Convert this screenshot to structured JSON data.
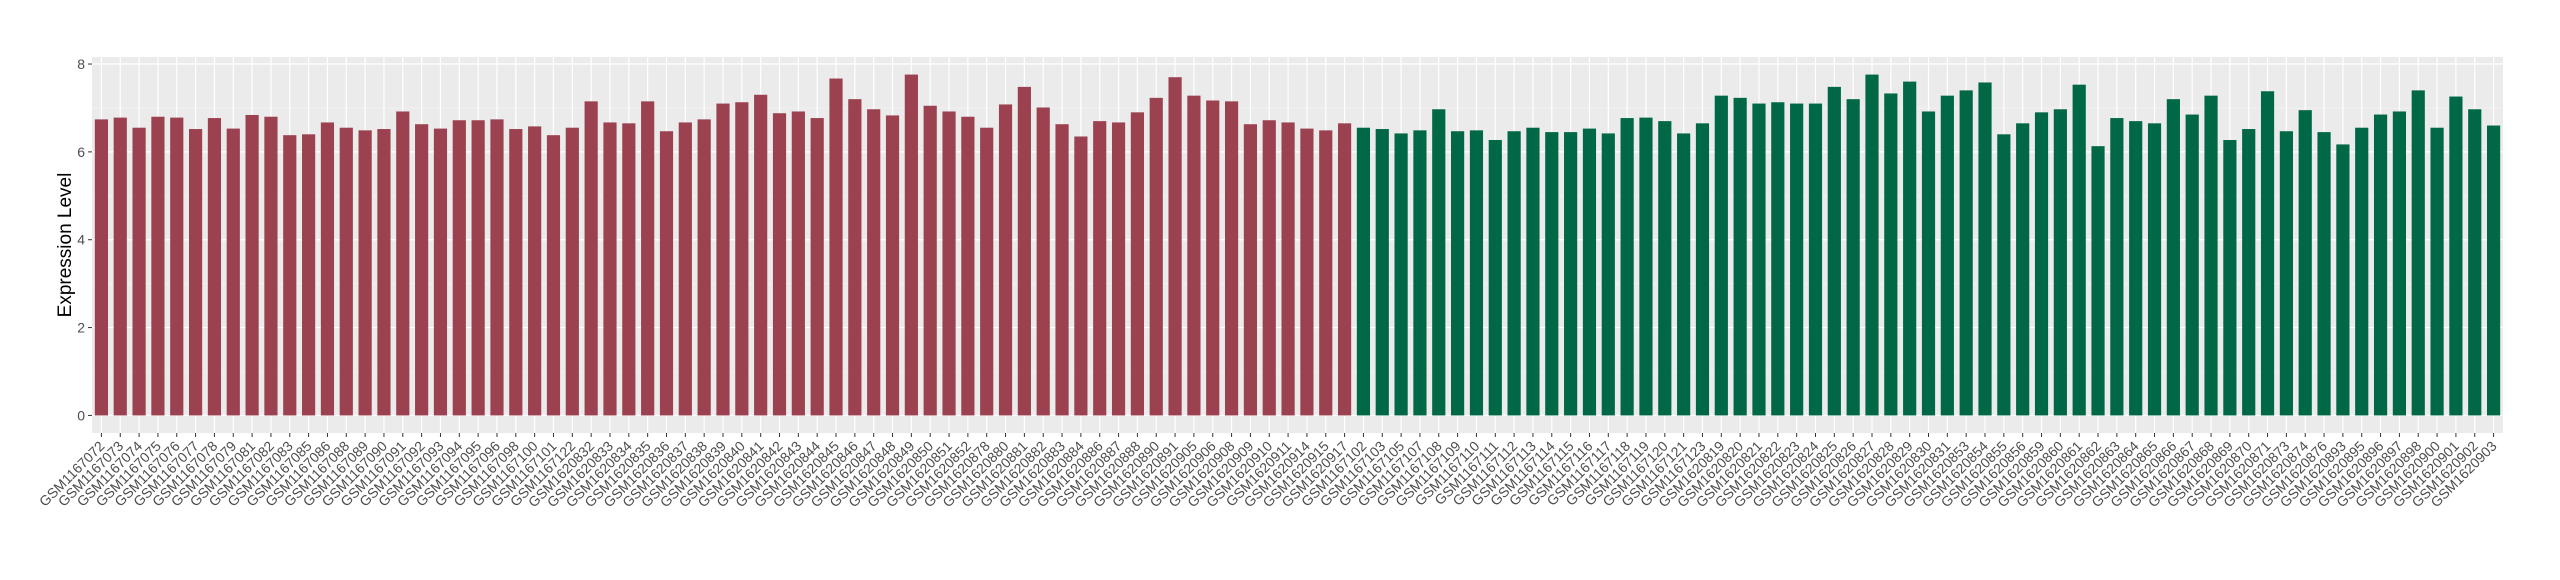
{
  "chart_data": {
    "type": "bar",
    "title": "",
    "xlabel": "",
    "ylabel": "Expression Level",
    "ylim": [
      -0.4,
      8.16
    ],
    "yticks": [
      0,
      2,
      4,
      6,
      8
    ],
    "grid": true,
    "legend": "none",
    "colors": {
      "group1": "#9B4150",
      "group2": "#006846",
      "panel": "#EBEBEB",
      "grid": "#FFFFFF"
    },
    "categories": [
      "GSM1167072",
      "GSM1167073",
      "GSM1167074",
      "GSM1167075",
      "GSM1167076",
      "GSM1167077",
      "GSM1167078",
      "GSM1167079",
      "GSM1167081",
      "GSM1167082",
      "GSM1167083",
      "GSM1167085",
      "GSM1167086",
      "GSM1167088",
      "GSM1167089",
      "GSM1167090",
      "GSM1167091",
      "GSM1167092",
      "GSM1167093",
      "GSM1167094",
      "GSM1167095",
      "GSM1167096",
      "GSM1167098",
      "GSM1167100",
      "GSM1167101",
      "GSM1167122",
      "GSM1620832",
      "GSM1620833",
      "GSM1620834",
      "GSM1620835",
      "GSM1620836",
      "GSM1620837",
      "GSM1620838",
      "GSM1620839",
      "GSM1620840",
      "GSM1620841",
      "GSM1620842",
      "GSM1620843",
      "GSM1620844",
      "GSM1620845",
      "GSM1620846",
      "GSM1620847",
      "GSM1620848",
      "GSM1620849",
      "GSM1620850",
      "GSM1620851",
      "GSM1620852",
      "GSM1620878",
      "GSM1620880",
      "GSM1620881",
      "GSM1620882",
      "GSM1620883",
      "GSM1620884",
      "GSM1620886",
      "GSM1620887",
      "GSM1620888",
      "GSM1620890",
      "GSM1620891",
      "GSM1620905",
      "GSM1620906",
      "GSM1620908",
      "GSM1620909",
      "GSM1620910",
      "GSM1620911",
      "GSM1620914",
      "GSM1620915",
      "GSM1620917",
      "GSM1167102",
      "GSM1167103",
      "GSM1167105",
      "GSM1167107",
      "GSM1167108",
      "GSM1167109",
      "GSM1167110",
      "GSM1167111",
      "GSM1167112",
      "GSM1167113",
      "GSM1167114",
      "GSM1167115",
      "GSM1167116",
      "GSM1167117",
      "GSM1167118",
      "GSM1167119",
      "GSM1167120",
      "GSM1167121",
      "GSM1167123",
      "GSM1620819",
      "GSM1620820",
      "GSM1620821",
      "GSM1620822",
      "GSM1620823",
      "GSM1620824",
      "GSM1620825",
      "GSM1620826",
      "GSM1620827",
      "GSM1620828",
      "GSM1620829",
      "GSM1620830",
      "GSM1620831",
      "GSM1620853",
      "GSM1620854",
      "GSM1620855",
      "GSM1620856",
      "GSM1620859",
      "GSM1620860",
      "GSM1620861",
      "GSM1620862",
      "GSM1620863",
      "GSM1620864",
      "GSM1620865",
      "GSM1620866",
      "GSM1620867",
      "GSM1620868",
      "GSM1620869",
      "GSM1620870",
      "GSM1620871",
      "GSM1620873",
      "GSM1620874",
      "GSM1620876",
      "GSM1620893",
      "GSM1620895",
      "GSM1620896",
      "GSM1620897",
      "GSM1620898",
      "GSM1620900",
      "GSM1620901",
      "GSM1620902",
      "GSM1620903"
    ],
    "values": [
      6.74,
      6.78,
      6.55,
      6.8,
      6.78,
      6.52,
      6.77,
      6.53,
      6.84,
      6.8,
      6.38,
      6.4,
      6.67,
      6.55,
      6.49,
      6.52,
      6.92,
      6.63,
      6.53,
      6.72,
      6.72,
      6.74,
      6.52,
      6.58,
      6.38,
      6.55,
      7.15,
      6.67,
      6.65,
      7.15,
      6.47,
      6.67,
      6.74,
      7.1,
      7.13,
      7.3,
      6.88,
      6.92,
      6.77,
      7.67,
      7.2,
      6.97,
      6.83,
      7.76,
      7.05,
      6.92,
      6.8,
      6.55,
      7.08,
      7.48,
      7.01,
      6.63,
      6.35,
      6.7,
      6.67,
      6.9,
      7.23,
      7.7,
      7.28,
      7.17,
      7.15,
      6.63,
      6.72,
      6.67,
      6.53,
      6.49,
      6.65,
      6.55,
      6.52,
      6.42,
      6.49,
      6.97,
      6.47,
      6.49,
      6.27,
      6.47,
      6.55,
      6.45,
      6.45,
      6.53,
      6.42,
      6.77,
      6.78,
      6.7,
      6.42,
      6.65,
      7.28,
      7.23,
      7.1,
      7.13,
      7.1,
      7.1,
      7.48,
      7.2,
      7.76,
      7.33,
      7.6,
      6.92,
      7.28,
      7.4,
      7.58,
      6.4,
      6.65,
      6.9,
      6.97,
      7.53,
      6.13,
      6.77,
      6.7,
      6.65,
      7.2,
      6.85,
      7.28,
      6.27,
      6.52,
      7.38,
      6.47,
      6.95,
      6.45,
      6.17,
      6.55,
      6.85,
      6.92,
      7.4,
      6.55,
      7.26,
      6.97,
      6.6
    ],
    "group_counts": [
      67,
      61
    ]
  }
}
